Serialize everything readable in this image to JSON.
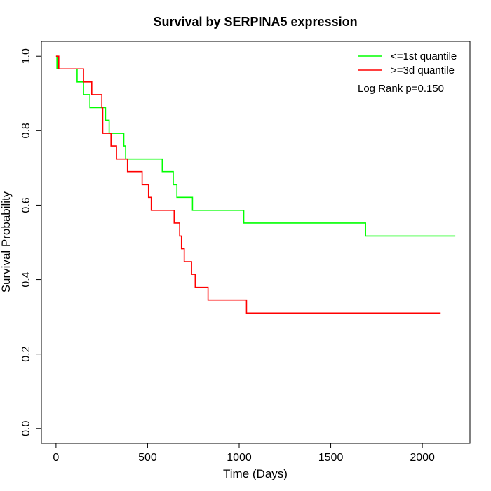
{
  "chart_data": {
    "type": "line",
    "title": "Survival by SERPINA5 expression",
    "xlabel": "Time (Days)",
    "ylabel": "Survival Probability",
    "xlim": [
      -80,
      2260
    ],
    "ylim": [
      -0.04,
      1.04
    ],
    "x_ticks": [
      0,
      500,
      1000,
      1500,
      2000
    ],
    "x_tick_labels": [
      "0",
      "500",
      "1000",
      "1500",
      "2000"
    ],
    "y_ticks": [
      0.0,
      0.2,
      0.4,
      0.6,
      0.8,
      1.0
    ],
    "y_tick_labels": [
      "0.0",
      "0.2",
      "0.4",
      "0.6",
      "0.8",
      "1.0"
    ],
    "grid": false,
    "legend_position": "top-right",
    "annotation": "Log Rank p=0.150",
    "series": [
      {
        "name": "<=1st quantile",
        "color": "#00ff00",
        "step": true,
        "x": [
          0,
          5,
          115,
          150,
          185,
          250,
          270,
          290,
          370,
          380,
          580,
          640,
          660,
          745,
          1025,
          1690,
          2180
        ],
        "y": [
          1.0,
          0.966,
          0.931,
          0.897,
          0.862,
          0.862,
          0.828,
          0.793,
          0.759,
          0.724,
          0.69,
          0.655,
          0.621,
          0.586,
          0.552,
          0.517,
          0.517
        ]
      },
      {
        "name": ">=3d quantile",
        "color": "#ff0000",
        "step": true,
        "x": [
          0,
          15,
          150,
          180,
          195,
          250,
          255,
          300,
          330,
          390,
          470,
          505,
          520,
          645,
          675,
          685,
          700,
          740,
          760,
          830,
          1040,
          2100
        ],
        "y": [
          1.0,
          0.966,
          0.931,
          0.931,
          0.897,
          0.862,
          0.793,
          0.759,
          0.724,
          0.69,
          0.655,
          0.621,
          0.586,
          0.552,
          0.517,
          0.483,
          0.448,
          0.414,
          0.379,
          0.345,
          0.31,
          0.31
        ]
      }
    ]
  }
}
